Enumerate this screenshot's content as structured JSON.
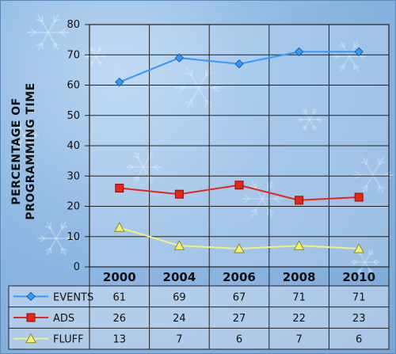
{
  "chart_data": {
    "type": "line",
    "ylabel_lines": [
      "PERCENTAGE OF",
      "PROGRAMMING TIME"
    ],
    "ylim": [
      0,
      80
    ],
    "yticks": [
      0,
      10,
      20,
      30,
      40,
      50,
      60,
      70,
      80
    ],
    "categories": [
      "2000",
      "2004",
      "2006",
      "2008",
      "2010"
    ],
    "grid": true,
    "legend": "data-table-below",
    "series": [
      {
        "name": "EVENTS",
        "color": "#3399ff",
        "marker": "diamond",
        "values": [
          61,
          69,
          67,
          71,
          71
        ]
      },
      {
        "name": "ADS",
        "color": "#e5261a",
        "marker": "square",
        "values": [
          26,
          24,
          27,
          22,
          23
        ]
      },
      {
        "name": "FLUFF",
        "color": "#f4f07a",
        "marker": "triangle",
        "values": [
          13,
          7,
          6,
          7,
          6
        ]
      }
    ]
  }
}
